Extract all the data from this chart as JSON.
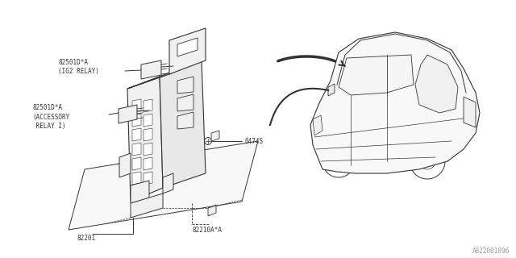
{
  "bg_color": "#ffffff",
  "line_color": "#333333",
  "fig_width": 6.4,
  "fig_height": 3.2,
  "dpi": 100,
  "part_number_ref": "A822001096",
  "labels": {
    "ig2_relay": "82501D*A\n(IG2 RELAY)",
    "acc_relay": "82501D*A\n(ACCESSORY\n RELAY I)",
    "screw": "0474S",
    "joint_box": "82201",
    "cover": "82210A*A"
  },
  "font_size": 5.5,
  "ref_font_size": 5.5
}
